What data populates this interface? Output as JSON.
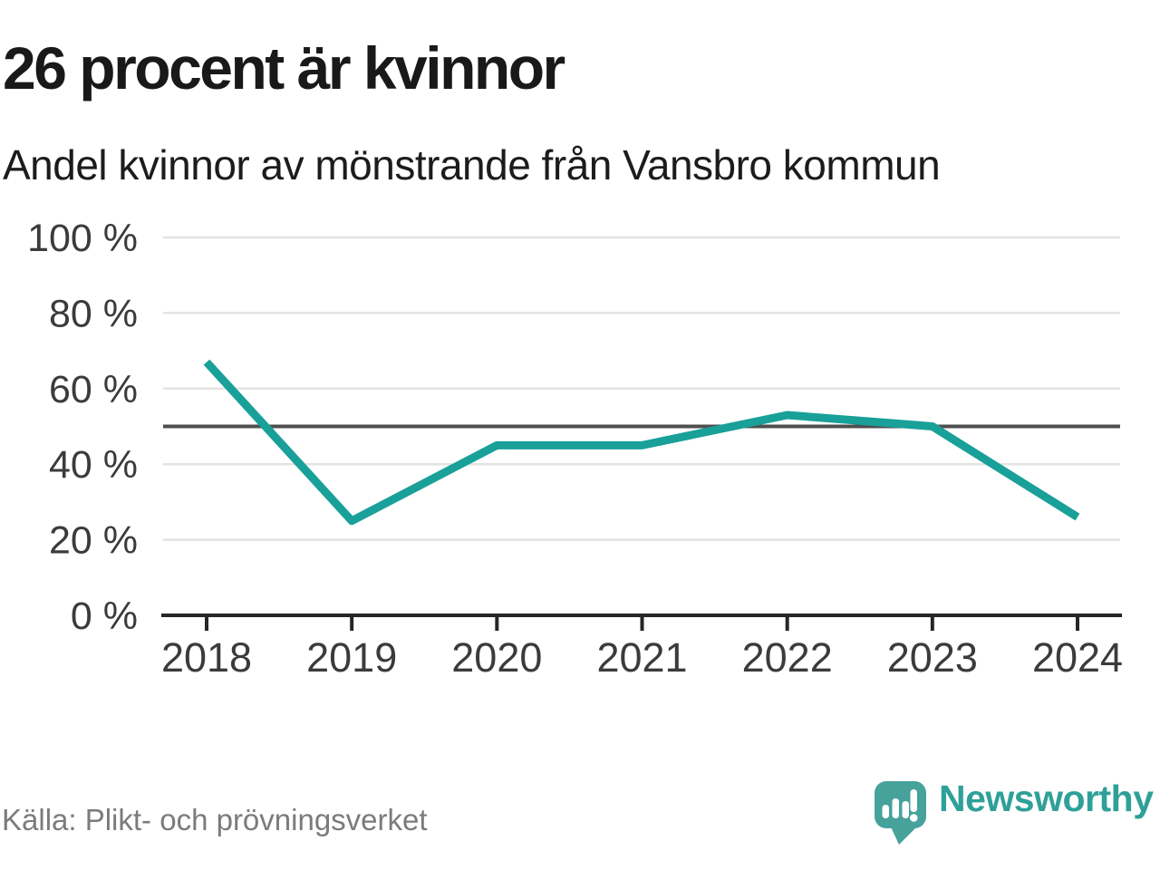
{
  "header": {
    "title": "26 procent är kvinnor",
    "subtitle": "Andel kvinnor av mönstrande från Vansbro kommun"
  },
  "chart_data": {
    "type": "line",
    "title": "26 procent är kvinnor",
    "subtitle": "Andel kvinnor av mönstrande från Vansbro kommun",
    "x": [
      "2018",
      "2019",
      "2020",
      "2021",
      "2022",
      "2023",
      "2024"
    ],
    "series": [
      {
        "name": "Andel kvinnor av mönstrande",
        "values": [
          67,
          25,
          45,
          45,
          53,
          50,
          26
        ]
      }
    ],
    "unit": "%",
    "ylim": [
      0,
      100
    ],
    "yticks": [
      0,
      20,
      40,
      60,
      80,
      100
    ],
    "ytick_labels": [
      "0 %",
      "20 %",
      "40 %",
      "60 %",
      "80 %",
      "100 %"
    ],
    "reference_line": 50,
    "grid": true,
    "legend_position": "none",
    "line_color": "#18a099"
  },
  "footer": {
    "source": "Källa: Plikt- och prövningsverket",
    "brand": "Newsworthy"
  },
  "icons": {
    "logo": "newsworthy-speech-bubble-bar-chart-icon"
  },
  "colors": {
    "background": "#ffffff",
    "title_text": "#191919",
    "subtitle_text": "#1c1c1c",
    "axis_label": "#3b3b3b",
    "gridline": "#e3e3e3",
    "reference_line": "#4f4f4f",
    "axis": "#262626",
    "line": "#18a099",
    "source_text": "#7b7b7b",
    "logo_teal": "#46a29b",
    "logo_bars": "#ffffff",
    "brand_text": "#2fa099"
  }
}
